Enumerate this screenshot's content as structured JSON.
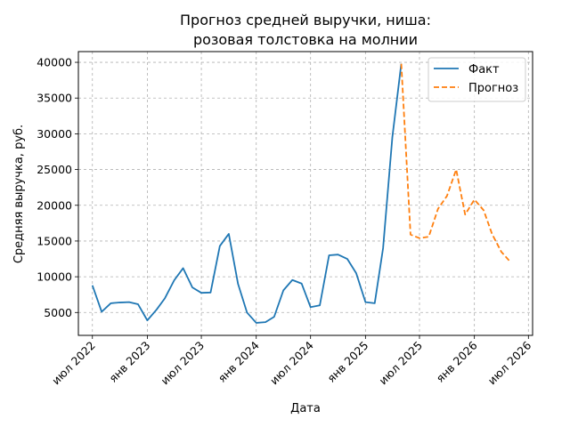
{
  "chart_data": {
    "type": "line",
    "title_line1": "Прогноз средней выручки, ниша:",
    "title_line2": "розовая толстовка на молнии",
    "xlabel": "Дата",
    "ylabel": "Средняя выручка, руб.",
    "grid": true,
    "legend_position": "top-right",
    "xlim": [
      "2022-05-15",
      "2026-07-15"
    ],
    "ylim": [
      1800,
      41500
    ],
    "x_ticks": [
      {
        "date": "2022-07-01",
        "label": "июл 2022"
      },
      {
        "date": "2023-01-01",
        "label": "янв 2023"
      },
      {
        "date": "2023-07-01",
        "label": "июл 2023"
      },
      {
        "date": "2024-01-01",
        "label": "янв 2024"
      },
      {
        "date": "2024-07-01",
        "label": "июл 2024"
      },
      {
        "date": "2025-01-01",
        "label": "янв 2025"
      },
      {
        "date": "2025-07-01",
        "label": "июл 2025"
      },
      {
        "date": "2026-01-01",
        "label": "янв 2026"
      },
      {
        "date": "2026-07-01",
        "label": "июл 2026"
      }
    ],
    "y_ticks": [
      5000,
      10000,
      15000,
      20000,
      25000,
      30000,
      35000,
      40000
    ],
    "series": [
      {
        "name": "Факт",
        "color": "#1f77b4",
        "dashed": false,
        "points": [
          [
            "2022-07-01",
            8800
          ],
          [
            "2022-08-01",
            5100
          ],
          [
            "2022-09-01",
            6300
          ],
          [
            "2022-10-01",
            6400
          ],
          [
            "2022-11-01",
            6450
          ],
          [
            "2022-12-01",
            6150
          ],
          [
            "2023-01-01",
            3900
          ],
          [
            "2023-02-01",
            5400
          ],
          [
            "2023-03-01",
            7000
          ],
          [
            "2023-04-01",
            9500
          ],
          [
            "2023-05-01",
            11200
          ],
          [
            "2023-06-01",
            8500
          ],
          [
            "2023-07-01",
            7750
          ],
          [
            "2023-08-01",
            7800
          ],
          [
            "2023-09-01",
            14300
          ],
          [
            "2023-10-01",
            16000
          ],
          [
            "2023-11-01",
            9000
          ],
          [
            "2023-12-01",
            5000
          ],
          [
            "2024-01-01",
            3550
          ],
          [
            "2024-02-01",
            3650
          ],
          [
            "2024-03-01",
            4400
          ],
          [
            "2024-04-01",
            8100
          ],
          [
            "2024-05-01",
            9550
          ],
          [
            "2024-06-01",
            9050
          ],
          [
            "2024-07-01",
            5750
          ],
          [
            "2024-08-01",
            6000
          ],
          [
            "2024-09-01",
            13000
          ],
          [
            "2024-10-01",
            13100
          ],
          [
            "2024-11-01",
            12500
          ],
          [
            "2024-12-01",
            10500
          ],
          [
            "2025-01-01",
            6450
          ],
          [
            "2025-02-01",
            6300
          ],
          [
            "2025-03-01",
            14000
          ],
          [
            "2025-04-01",
            29500
          ],
          [
            "2025-05-01",
            39800
          ]
        ]
      },
      {
        "name": "Прогноз",
        "color": "#ff7f0e",
        "dashed": true,
        "points": [
          [
            "2025-05-01",
            39800
          ],
          [
            "2025-06-01",
            15900
          ],
          [
            "2025-07-01",
            15400
          ],
          [
            "2025-08-01",
            15600
          ],
          [
            "2025-09-01",
            19500
          ],
          [
            "2025-10-01",
            21300
          ],
          [
            "2025-11-01",
            25000
          ],
          [
            "2025-12-01",
            18700
          ],
          [
            "2026-01-01",
            20800
          ],
          [
            "2026-02-01",
            19300
          ],
          [
            "2026-03-01",
            16000
          ],
          [
            "2026-04-01",
            13500
          ],
          [
            "2026-05-01",
            12100
          ]
        ]
      }
    ]
  }
}
